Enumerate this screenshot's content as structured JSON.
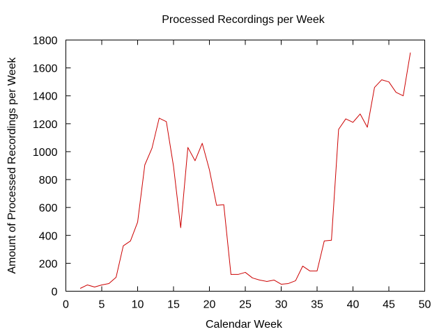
{
  "chart_data": {
    "type": "line",
    "title": "Processed Recordings per Week",
    "xlabel": "Calendar Week",
    "ylabel": "Amount of Processed Recordings per Week",
    "xlim": [
      0,
      50
    ],
    "ylim": [
      0,
      1800
    ],
    "xticks": [
      0,
      5,
      10,
      15,
      20,
      25,
      30,
      35,
      40,
      45,
      50
    ],
    "yticks": [
      0,
      200,
      400,
      600,
      800,
      1000,
      1200,
      1400,
      1600,
      1800
    ],
    "grid": false,
    "legend": "none",
    "series": [
      {
        "color": "#cc0000",
        "x": [
          2,
          3,
          4,
          5,
          6,
          7,
          8,
          9,
          10,
          11,
          12,
          13,
          14,
          15,
          16,
          17,
          18,
          19,
          20,
          21,
          22,
          23,
          24,
          25,
          26,
          27,
          28,
          29,
          30,
          31,
          32,
          33,
          34,
          35,
          36,
          37,
          38,
          39,
          40,
          41,
          42,
          43,
          44,
          45,
          46,
          47,
          48
        ],
        "values": [
          20,
          45,
          30,
          45,
          55,
          100,
          325,
          360,
          495,
          905,
          1025,
          1240,
          1215,
          895,
          455,
          1030,
          935,
          1060,
          870,
          615,
          620,
          120,
          120,
          135,
          95,
          80,
          70,
          80,
          50,
          55,
          75,
          180,
          145,
          145,
          360,
          365,
          1160,
          1235,
          1210,
          1270,
          1175,
          1460,
          1515,
          1500,
          1425,
          1400,
          1710
        ]
      }
    ]
  }
}
